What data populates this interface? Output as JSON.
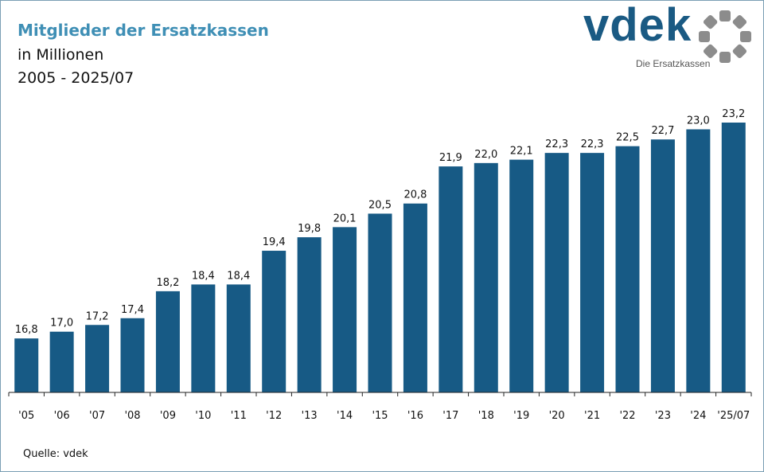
{
  "header": {
    "title": "Mitglieder der Ersatzkassen",
    "subtitle_line1": "in Millionen",
    "subtitle_line2": "2005 - 2025/07"
  },
  "logo": {
    "wordmark": "vdek",
    "tagline": "Die Ersatzkassen",
    "color": "#1a5a83",
    "ring_color": "#8c8c8c"
  },
  "footer": {
    "source": "Quelle: vdek"
  },
  "colors": {
    "bar": "#175a85",
    "title": "#3f8fb5"
  },
  "chart_data": {
    "type": "bar",
    "title": "Mitglieder der Ersatzkassen",
    "xlabel": "",
    "ylabel": "",
    "categories": [
      "'05",
      "'06",
      "'07",
      "'08",
      "'09",
      "'10",
      "'11",
      "'12",
      "'13",
      "'14",
      "'15",
      "'16",
      "'17",
      "'18",
      "'19",
      "'20",
      "'21",
      "'22",
      "'23",
      "'24",
      "'25/07"
    ],
    "values": [
      16.8,
      17.0,
      17.2,
      17.4,
      18.2,
      18.4,
      18.4,
      19.4,
      19.8,
      20.1,
      20.5,
      20.8,
      21.9,
      22.0,
      22.1,
      22.3,
      22.3,
      22.5,
      22.7,
      23.0,
      23.2
    ],
    "value_labels": [
      "16,8",
      "17,0",
      "17,2",
      "17,4",
      "18,2",
      "18,4",
      "18,4",
      "19,4",
      "19,8",
      "20,1",
      "20,5",
      "20,8",
      "21,9",
      "22,0",
      "22,1",
      "22,3",
      "22,3",
      "22,5",
      "22,7",
      "23,0",
      "23,2"
    ],
    "ylim": [
      15.2,
      23.2
    ],
    "grid": false,
    "legend": "none"
  }
}
